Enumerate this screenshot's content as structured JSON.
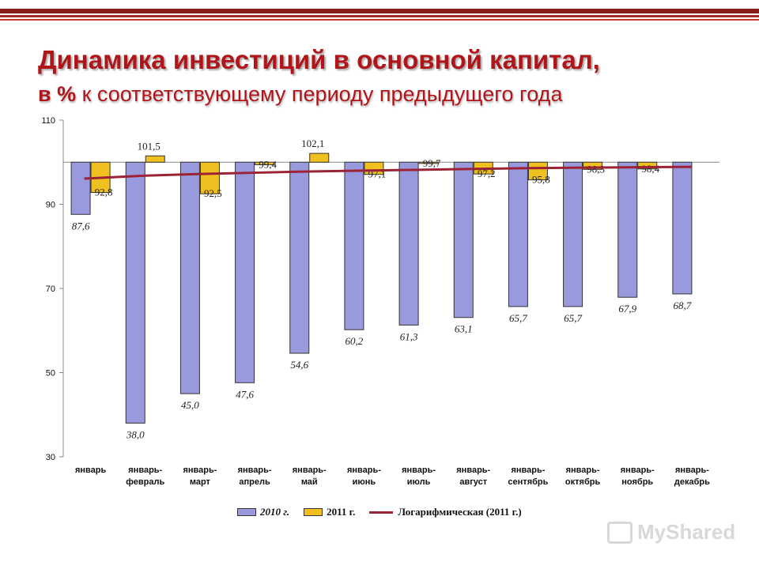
{
  "title": "Динамика инвестиций в основной капитал,",
  "subtitle_prefix": "в %",
  "subtitle_rest": " к соответствующему периоду предыдущего года",
  "watermark": "MyShared",
  "colors": {
    "series_2010": "#9999dd",
    "series_2011": "#f0c020",
    "trend": "#9b2335",
    "title": "#b0151a"
  },
  "chart_data": {
    "type": "bar",
    "title": "Динамика инвестиций в основной капитал, в % к соответствующему периоду предыдущего года",
    "ylim": [
      30,
      110
    ],
    "yticks": [
      30,
      50,
      70,
      90,
      110
    ],
    "baseline": 100,
    "categories": [
      [
        "январь"
      ],
      [
        "январь-",
        "февраль"
      ],
      [
        "январь-",
        "март"
      ],
      [
        "январь-",
        "апрель"
      ],
      [
        "январь-",
        "май"
      ],
      [
        "январь-",
        "июнь"
      ],
      [
        "январь-",
        "июль"
      ],
      [
        "январь-",
        "август"
      ],
      [
        "январь-",
        "сентябрь"
      ],
      [
        "январь-",
        "октябрь"
      ],
      [
        "январь-",
        "ноябрь"
      ],
      [
        "январь-",
        "декабрь"
      ]
    ],
    "series": [
      {
        "name": "2010 г.",
        "values": [
          87.6,
          38.0,
          45.0,
          47.6,
          54.6,
          60.2,
          61.3,
          63.1,
          65.7,
          65.7,
          67.9,
          68.7
        ],
        "labels": [
          "87,6",
          "38,0",
          "45,0",
          "47,6",
          "54,6",
          "60,2",
          "61,3",
          "63,1",
          "65,7",
          "65,7",
          "67,9",
          "68,7"
        ]
      },
      {
        "name": "2011 г.",
        "values": [
          92.8,
          101.5,
          92.5,
          99.4,
          102.1,
          97.1,
          99.7,
          97.2,
          95.8,
          98.3,
          98.4,
          null
        ],
        "labels": [
          "92,8",
          "101,5",
          "92,5",
          "99,4",
          "102,1",
          "97,1",
          "99,7",
          "97,2",
          "95,8",
          "98,3",
          "98,4",
          null
        ]
      }
    ],
    "trendline": {
      "name": "Логарифмическая (2011 г.)",
      "type": "logarithmic",
      "values": [
        96.1,
        96.8,
        97.2,
        97.5,
        97.8,
        98.0,
        98.2,
        98.4,
        98.6,
        98.7,
        98.8,
        98.9
      ]
    },
    "legend": [
      "2010 г.",
      "2011 г.",
      "Логарифмическая (2011 г.)"
    ]
  }
}
